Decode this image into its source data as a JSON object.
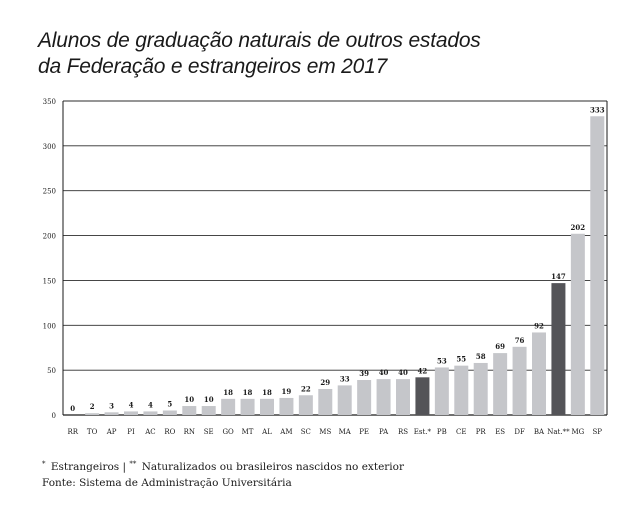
{
  "title_line1": "Alunos de graduação naturais de outros estados",
  "title_line2": "da Federação e estrangeiros em 2017",
  "chart_data": {
    "type": "bar",
    "title": "Alunos de graduação naturais de outros estados da Federação e estrangeiros em 2017",
    "xlabel": "",
    "ylabel": "",
    "ylim": [
      0,
      350
    ],
    "yticks": [
      0,
      50,
      100,
      150,
      200,
      250,
      300,
      350
    ],
    "grid": true,
    "categories": [
      "RR",
      "TO",
      "AP",
      "PI",
      "AC",
      "RO",
      "RN",
      "SE",
      "GO",
      "MT",
      "AL",
      "AM",
      "SC",
      "MS",
      "MA",
      "PE",
      "PA",
      "RS",
      "Est.*",
      "PB",
      "CE",
      "PR",
      "ES",
      "DF",
      "BA",
      "Nat.**",
      "MG",
      "SP"
    ],
    "values": [
      0,
      2,
      3,
      4,
      4,
      5,
      10,
      10,
      18,
      18,
      18,
      19,
      22,
      29,
      33,
      39,
      40,
      40,
      42,
      53,
      55,
      58,
      69,
      76,
      92,
      147,
      202,
      333
    ],
    "colors": {
      "default": "#c5c6ca",
      "highlight": "#545458",
      "grid": "#2b2b2b",
      "axis": "#1a1a1a"
    },
    "highlighted_categories": [
      "Est.*",
      "Nat.**"
    ]
  },
  "notes": {
    "mark1": "*",
    "line1_a": " Estrangeiros | ",
    "mark2": "**",
    "line1_b": " Naturalizados ou brasileiros nascidos no exterior",
    "line2": "Fonte: Sistema de Administração Universitária"
  }
}
